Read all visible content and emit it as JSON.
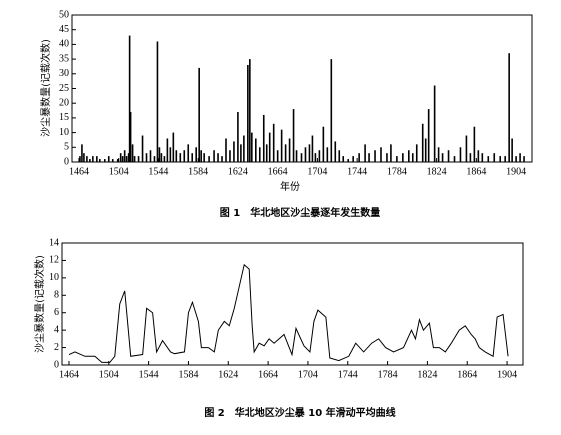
{
  "chart_data": [
    {
      "type": "bar",
      "title": "图 1　华北地区沙尘暴逐年发生数量",
      "x_label": "年份",
      "y_label": "沙尘暴数量(记载次数)",
      "color": "#000000",
      "x": [
        1465,
        1467,
        1469,
        1472,
        1475,
        1478,
        1482,
        1485,
        1490,
        1494,
        1498,
        1503,
        1506,
        1508,
        1510,
        1512,
        1514,
        1515,
        1516,
        1518,
        1520,
        1524,
        1528,
        1532,
        1536,
        1540,
        1543,
        1545,
        1547,
        1550,
        1553,
        1556,
        1559,
        1562,
        1566,
        1570,
        1574,
        1578,
        1582,
        1585,
        1587,
        1590,
        1595,
        1600,
        1604,
        1608,
        1612,
        1616,
        1620,
        1624,
        1627,
        1630,
        1634,
        1636,
        1638,
        1642,
        1646,
        1650,
        1653,
        1656,
        1660,
        1664,
        1668,
        1672,
        1676,
        1680,
        1683,
        1688,
        1692,
        1696,
        1699,
        1702,
        1706,
        1710,
        1714,
        1718,
        1722,
        1726,
        1730,
        1735,
        1740,
        1746,
        1752,
        1756,
        1762,
        1768,
        1774,
        1778,
        1784,
        1790,
        1796,
        1800,
        1804,
        1810,
        1813,
        1816,
        1822,
        1826,
        1830,
        1836,
        1842,
        1848,
        1854,
        1858,
        1862,
        1866,
        1870,
        1876,
        1882,
        1888,
        1893,
        1897,
        1900,
        1904,
        1908,
        1912
      ],
      "values": [
        2,
        6,
        3,
        2,
        1,
        2,
        2,
        1,
        1,
        2,
        1,
        1,
        3,
        2,
        4,
        2,
        3,
        43,
        17,
        6,
        2,
        2,
        9,
        3,
        4,
        2,
        41,
        5,
        3,
        2,
        8,
        5,
        10,
        4,
        3,
        4,
        6,
        3,
        5,
        32,
        4,
        3,
        2,
        4,
        3,
        2,
        8,
        4,
        7,
        17,
        6,
        9,
        33,
        35,
        10,
        8,
        5,
        16,
        6,
        10,
        13,
        4,
        11,
        6,
        8,
        18,
        4,
        3,
        5,
        6,
        9,
        3,
        4,
        12,
        5,
        35,
        7,
        4,
        2,
        1,
        2,
        3,
        6,
        3,
        4,
        5,
        3,
        6,
        2,
        3,
        4,
        3,
        6,
        13,
        8,
        18,
        26,
        5,
        3,
        4,
        2,
        5,
        9,
        3,
        12,
        4,
        3,
        2,
        3,
        2,
        2,
        37,
        8,
        2,
        3,
        2
      ],
      "xlim": [
        1457,
        1920
      ],
      "xticks": [
        1464,
        1504,
        1544,
        1584,
        1624,
        1664,
        1704,
        1744,
        1784,
        1824,
        1864,
        1904
      ],
      "ylim": [
        0,
        50
      ],
      "yticks": [
        0,
        5,
        10,
        15,
        20,
        25,
        30,
        35,
        40,
        45,
        50
      ]
    },
    {
      "type": "line",
      "title": "图 2　华北地区沙尘暴 10 年滑动平均曲线",
      "y_label": "沙尘暴数量(记载次数)",
      "color": "#000000",
      "x": [
        1464,
        1470,
        1480,
        1490,
        1497,
        1505,
        1510,
        1515,
        1520,
        1526,
        1538,
        1542,
        1548,
        1552,
        1558,
        1566,
        1570,
        1580,
        1584,
        1588,
        1594,
        1597,
        1604,
        1610,
        1614,
        1620,
        1625,
        1630,
        1634,
        1640,
        1645,
        1648,
        1650,
        1655,
        1660,
        1665,
        1670,
        1680,
        1688,
        1692,
        1700,
        1706,
        1710,
        1714,
        1722,
        1726,
        1735,
        1745,
        1752,
        1760,
        1768,
        1775,
        1782,
        1790,
        1800,
        1808,
        1812,
        1816,
        1820,
        1826,
        1830,
        1836,
        1842,
        1848,
        1856,
        1862,
        1868,
        1872,
        1876,
        1882,
        1890,
        1894,
        1900,
        1905
      ],
      "values": [
        1.2,
        1.5,
        1,
        1,
        0.3,
        0.3,
        1,
        7,
        8.5,
        1,
        1.2,
        6.5,
        6,
        1.5,
        2.8,
        1.5,
        1.3,
        1.5,
        6,
        7.2,
        5,
        2,
        2,
        1.5,
        4,
        5,
        4.5,
        6.5,
        8.5,
        11.5,
        11,
        4.5,
        1.5,
        2.5,
        2.2,
        3,
        2.5,
        3.5,
        1.2,
        4.2,
        2.2,
        1.5,
        5,
        6.3,
        5.5,
        0.8,
        0.5,
        1,
        2.5,
        1.5,
        2.5,
        3,
        2,
        1.5,
        2,
        4,
        3,
        5.2,
        4,
        4.8,
        2,
        2,
        1.5,
        2.5,
        4,
        4.5,
        3.5,
        3,
        2,
        1.5,
        1,
        5.5,
        5.8,
        1
      ],
      "xlim": [
        1457,
        1920
      ],
      "xticks": [
        1464,
        1504,
        1544,
        1584,
        1624,
        1664,
        1704,
        1744,
        1784,
        1824,
        1864,
        1904
      ],
      "ylim": [
        0,
        14
      ],
      "yticks": [
        0,
        2,
        4,
        6,
        8,
        10,
        12,
        14
      ]
    }
  ]
}
